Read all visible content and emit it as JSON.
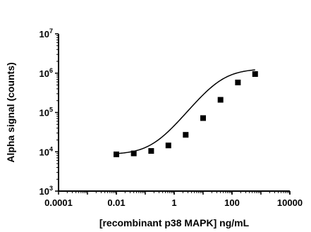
{
  "chart_data": {
    "type": "scatter",
    "xlabel": "[recombinant p38 MAPK] ng/mL",
    "ylabel": "Alpha signal (counts)",
    "x_scale": "log",
    "y_scale": "log",
    "xlim": [
      0.0001,
      10000
    ],
    "ylim": [
      1000,
      10000000
    ],
    "x_ticks": [
      {
        "value": 0.0001,
        "label": "0.0001"
      },
      {
        "value": 0.01,
        "label": "0.01"
      },
      {
        "value": 1,
        "label": "1"
      },
      {
        "value": 100,
        "label": "100"
      },
      {
        "value": 10000,
        "label": "10000"
      }
    ],
    "y_ticks": [
      {
        "value": 1000,
        "base": "10",
        "exp": "3"
      },
      {
        "value": 10000,
        "base": "10",
        "exp": "4"
      },
      {
        "value": 100000,
        "base": "10",
        "exp": "5"
      },
      {
        "value": 1000000,
        "base": "10",
        "exp": "6"
      },
      {
        "value": 10000000,
        "base": "10",
        "exp": "7"
      }
    ],
    "grid": false,
    "series": [
      {
        "marker": "square",
        "color": "#000000",
        "x": [
          0.01,
          0.04,
          0.16,
          0.63,
          2.5,
          10,
          40,
          160,
          630
        ],
        "y": [
          8600,
          9100,
          10500,
          14500,
          27000,
          72000,
          210000,
          580000,
          950000
        ]
      }
    ],
    "fit_curve": {
      "model": "4PL",
      "bottom": 8500,
      "top": 1300000,
      "ec50": 40,
      "hill": 0.95
    }
  }
}
